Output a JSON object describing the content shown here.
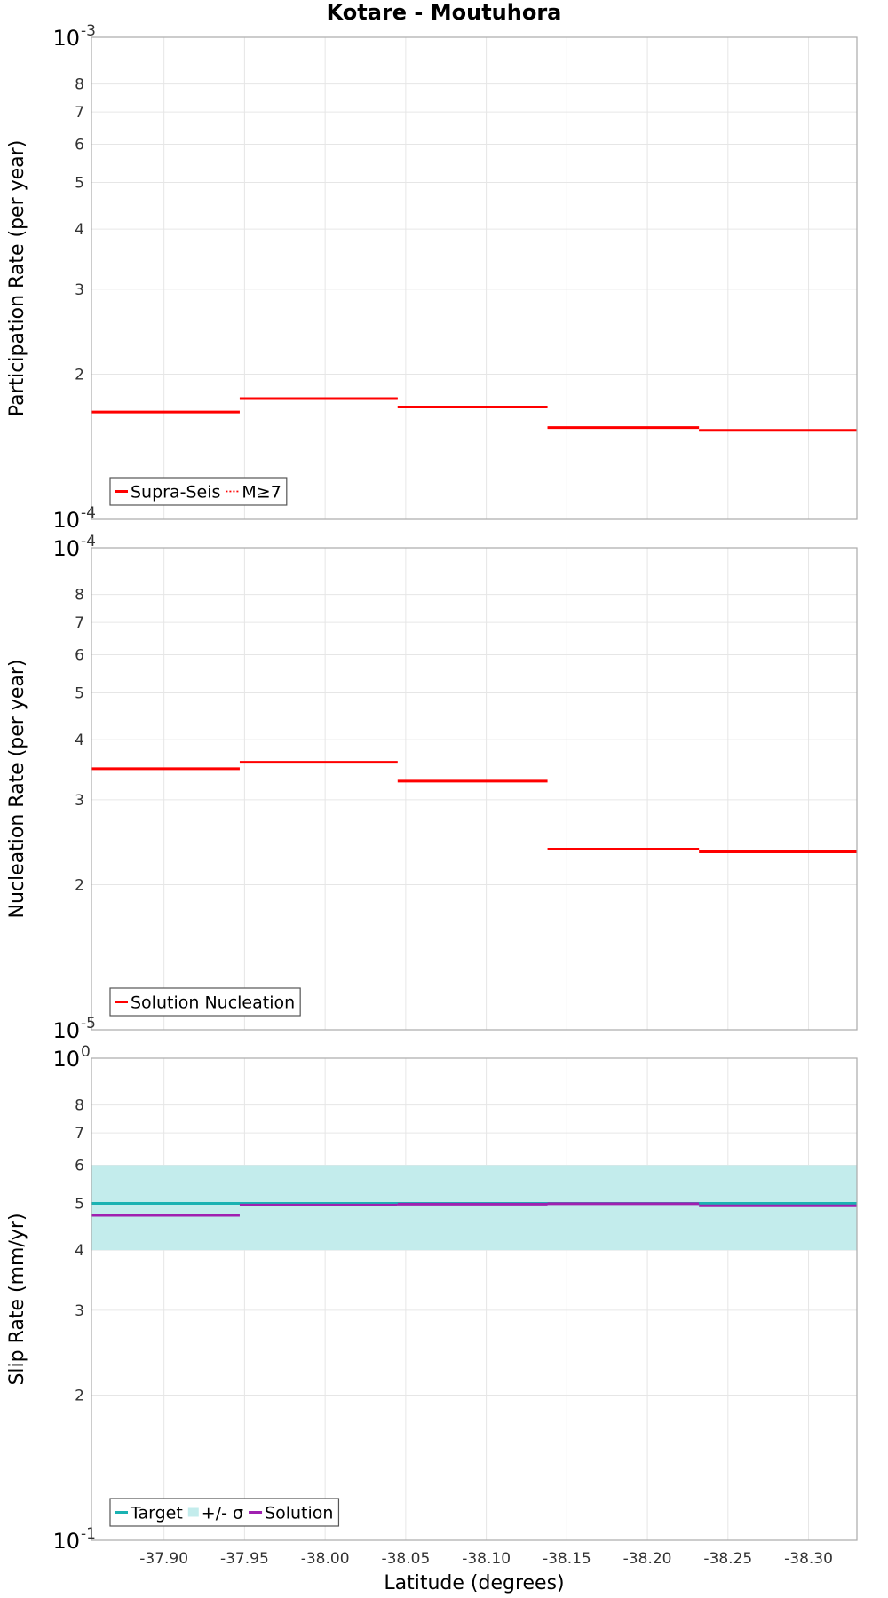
{
  "figure_title": "Kotare - Moutuhora",
  "chart_data": [
    {
      "type": "line",
      "style": "step",
      "ylabel": "Participation Rate (per year)",
      "yscale": "log",
      "ylim": [
        0.0001,
        0.001
      ],
      "ytick_labels": [
        "8",
        "7",
        "6",
        "5",
        "4",
        "3",
        "2"
      ],
      "ytick_values": [
        0.0008,
        0.0007,
        0.0006,
        0.0005,
        0.0004,
        0.0003,
        0.0002
      ],
      "decade_labels": [
        {
          "base": "10",
          "exp": "-3",
          "value": 0.001
        },
        {
          "base": "10",
          "exp": "-4",
          "value": 0.0001
        }
      ],
      "xlim": [
        -37.855,
        -38.33
      ],
      "series": [
        {
          "name": "Supra-Seis",
          "color": "#ff0000",
          "dash": "solid",
          "steps": [
            [
              -37.855,
              -37.947,
              0.000167
            ],
            [
              -37.947,
              -38.045,
              0.000178
            ],
            [
              -38.045,
              -38.138,
              0.000171
            ],
            [
              -38.138,
              -38.232,
              0.000155
            ],
            [
              -38.232,
              -38.33,
              0.000153
            ]
          ]
        },
        {
          "name": "M≥7",
          "color": "#ff0000",
          "dash": "dotted",
          "steps": [
            [
              -37.855,
              -37.947,
              0.000167
            ],
            [
              -37.947,
              -38.045,
              0.000178
            ],
            [
              -38.045,
              -38.138,
              0.000171
            ],
            [
              -38.138,
              -38.232,
              0.000155
            ],
            [
              -38.232,
              -38.33,
              0.000153
            ]
          ]
        }
      ],
      "legend": [
        {
          "label": "Supra-Seis",
          "color": "#ff0000",
          "kind": "line"
        },
        {
          "label": "M≥7",
          "color": "#ff0000",
          "kind": "dotted"
        }
      ]
    },
    {
      "type": "line",
      "style": "step",
      "ylabel": "Nucleation Rate (per year)",
      "yscale": "log",
      "ylim": [
        1e-05,
        0.0001
      ],
      "ytick_labels": [
        "8",
        "7",
        "6",
        "5",
        "4",
        "3",
        "2"
      ],
      "ytick_values": [
        8e-05,
        7e-05,
        6e-05,
        5e-05,
        4e-05,
        3e-05,
        2e-05
      ],
      "decade_labels": [
        {
          "base": "10",
          "exp": "-4",
          "value": 0.0001
        },
        {
          "base": "10",
          "exp": "-5",
          "value": 1e-05
        }
      ],
      "xlim": [
        -37.855,
        -38.33
      ],
      "series": [
        {
          "name": "Solution Nucleation",
          "color": "#ff0000",
          "dash": "solid",
          "steps": [
            [
              -37.855,
              -37.947,
              3.48e-05
            ],
            [
              -37.947,
              -38.045,
              3.59e-05
            ],
            [
              -38.045,
              -38.138,
              3.28e-05
            ],
            [
              -38.138,
              -38.232,
              2.37e-05
            ],
            [
              -38.232,
              -38.33,
              2.34e-05
            ]
          ]
        }
      ],
      "legend": [
        {
          "label": "Solution Nucleation",
          "color": "#ff0000",
          "kind": "line"
        }
      ]
    },
    {
      "type": "line",
      "style": "step",
      "ylabel": "Slip Rate (mm/yr)",
      "xlabel": "Latitude (degrees)",
      "yscale": "log",
      "ylim": [
        0.1,
        1
      ],
      "ytick_labels": [
        "8",
        "7",
        "6",
        "5",
        "4",
        "3",
        "2"
      ],
      "ytick_values": [
        0.8,
        0.7,
        0.6,
        0.5,
        0.4,
        0.3,
        0.2
      ],
      "decade_labels": [
        {
          "base": "10",
          "exp": "0",
          "value": 1
        },
        {
          "base": "10",
          "exp": "-1",
          "value": 0.1
        }
      ],
      "xlim": [
        -37.855,
        -38.33
      ],
      "xtick_values": [
        -37.9,
        -37.95,
        -38.0,
        -38.05,
        -38.1,
        -38.15,
        -38.2,
        -38.25,
        -38.3
      ],
      "xtick_labels": [
        "-37.90",
        "-37.95",
        "-38.00",
        "-38.05",
        "-38.10",
        "-38.15",
        "-38.20",
        "-38.25",
        "-38.30"
      ],
      "band": {
        "name": "+/- σ",
        "color": "#c3ecec",
        "low": 0.4,
        "high": 0.6
      },
      "series": [
        {
          "name": "Target",
          "color": "#1ab2b2",
          "dash": "solid",
          "steps": [
            [
              -37.855,
              -38.33,
              0.5
            ]
          ]
        },
        {
          "name": "Solution",
          "color": "#a020b0",
          "dash": "solid",
          "steps": [
            [
              -37.855,
              -37.947,
              0.472
            ],
            [
              -37.947,
              -38.045,
              0.496
            ],
            [
              -38.045,
              -38.138,
              0.498
            ],
            [
              -38.138,
              -38.232,
              0.499
            ],
            [
              -38.232,
              -38.33,
              0.494
            ]
          ]
        }
      ],
      "legend": [
        {
          "label": "Target",
          "color": "#1ab2b2",
          "kind": "line"
        },
        {
          "label": "+/- σ",
          "color": "#c3ecec",
          "kind": "band"
        },
        {
          "label": "Solution",
          "color": "#a020b0",
          "kind": "line"
        }
      ]
    }
  ]
}
